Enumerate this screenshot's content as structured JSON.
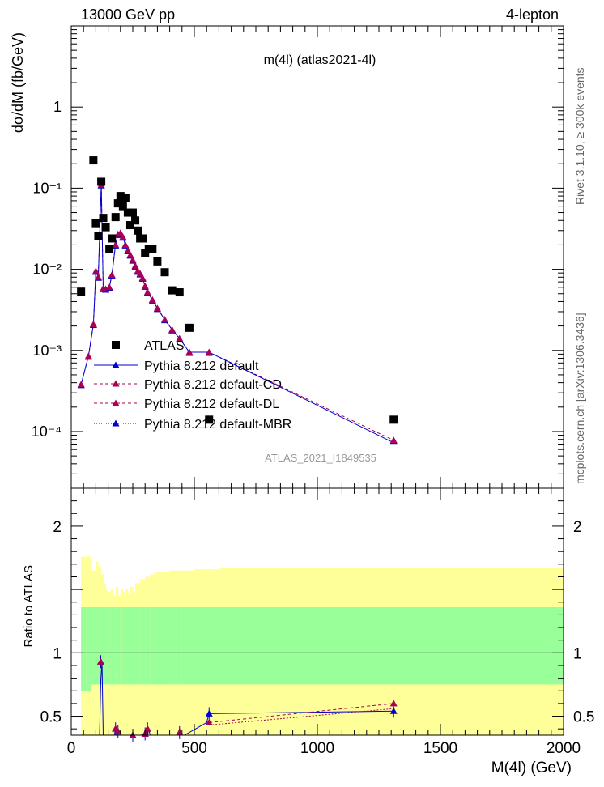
{
  "header": {
    "left": "13000 GeV pp",
    "right": "4-lepton"
  },
  "side_labels": {
    "rivet": "Rivet 3.1.10, ≥ 300k events",
    "mcplots": "mcplots.cern.ch [arXiv:1306.3436]"
  },
  "chart_data": {
    "type": "scatter",
    "title": "m(4l) (atlas2021-4l)",
    "analysis_label": "ATLAS_2021_I1849535",
    "xlabel": "M(4l) (GeV)",
    "ylabel_main": "dσ/dM (fb/GeV)",
    "ylabel_ratio": "Ratio to ATLAS",
    "xlim": [
      0,
      2000
    ],
    "ylim_main": [
      2e-05,
      10
    ],
    "yscale_main": "log",
    "ylim_ratio": [
      0.35,
      2.3
    ],
    "x_ticks": [
      "0",
      "500",
      "1000",
      "1500",
      "2000"
    ],
    "y_ticks_main": [
      "10⁻⁴",
      "10⁻³",
      "10⁻²",
      "10⁻¹",
      "1"
    ],
    "y_ticks_ratio": [
      "0.5",
      "1",
      "2"
    ],
    "legend": {
      "placement": "lower-left",
      "entries": [
        "ATLAS",
        "Pythia 8.212 default",
        "Pythia 8.212 default-CD",
        "Pythia 8.212 default-DL",
        "Pythia 8.212 default-MBR"
      ]
    },
    "colors": {
      "data": "#000000",
      "default": "#0000cc",
      "variants": "#aa0055",
      "band_inner": "#99ff99",
      "band_outer": "#ffff99"
    },
    "data": {
      "name": "ATLAS",
      "x": [
        40,
        90,
        100,
        110,
        122,
        130,
        140,
        155,
        165,
        180,
        190,
        200,
        210,
        220,
        230,
        240,
        250,
        260,
        270,
        280,
        290,
        300,
        315,
        330,
        350,
        380,
        410,
        440,
        480,
        560,
        1310
      ],
      "y": [
        0.0053,
        0.22,
        0.037,
        0.026,
        0.12,
        0.043,
        0.033,
        0.018,
        0.024,
        0.044,
        0.065,
        0.08,
        0.06,
        0.075,
        0.05,
        0.035,
        0.05,
        0.04,
        0.03,
        0.024,
        0.024,
        0.016,
        0.018,
        0.018,
        0.0125,
        0.0092,
        0.0055,
        0.0052,
        0.0019,
        0.00014,
        0.00014
      ]
    },
    "mc_x": [
      40,
      70,
      90,
      100,
      110,
      122,
      130,
      140,
      155,
      165,
      180,
      190,
      200,
      210,
      220,
      230,
      240,
      250,
      260,
      270,
      280,
      290,
      300,
      310,
      330,
      350,
      380,
      410,
      440,
      480,
      560,
      1310
    ],
    "mc_y": [
      0.00038,
      0.00085,
      0.0021,
      0.0095,
      0.008,
      0.11,
      0.0058,
      0.0057,
      0.006,
      0.0085,
      0.02,
      0.027,
      0.028,
      0.025,
      0.02,
      0.017,
      0.015,
      0.013,
      0.011,
      0.0095,
      0.0088,
      0.0078,
      0.0062,
      0.0052,
      0.0042,
      0.0033,
      0.0024,
      0.0018,
      0.0014,
      0.00095,
      0.00095,
      7.8e-05
    ],
    "ratio": {
      "x": [
        120,
        130,
        180,
        190,
        200,
        250,
        270,
        290,
        300,
        310,
        440,
        560,
        1310
      ],
      "default": [
        0.93,
        0.3,
        0.4,
        0.38,
        0.32,
        0.35,
        0.33,
        0.28,
        0.36,
        0.4,
        0.37,
        0.52,
        0.54
      ],
      "variants": [
        0.93,
        0.3,
        0.4,
        0.38,
        0.32,
        0.35,
        0.33,
        0.28,
        0.36,
        0.4,
        0.37,
        0.45,
        0.6
      ]
    },
    "band": {
      "edges": [
        40,
        60,
        80,
        100,
        110,
        120,
        130,
        140,
        150,
        160,
        170,
        180,
        190,
        200,
        210,
        220,
        230,
        240,
        250,
        260,
        270,
        280,
        300,
        320,
        340,
        360,
        400,
        450,
        500,
        600,
        2000
      ],
      "inner_lo": [
        0.7,
        0.7,
        0.75,
        0.75,
        0.75,
        0.75,
        0.75,
        0.75,
        0.75,
        0.75,
        0.75,
        0.75,
        0.75,
        0.75,
        0.75,
        0.75,
        0.75,
        0.75,
        0.75,
        0.75,
        0.75,
        0.75,
        0.75,
        0.75,
        0.75,
        0.75,
        0.75,
        0.75,
        0.75,
        0.75
      ],
      "inner_hi": [
        1.36,
        1.36,
        1.36,
        1.36,
        1.36,
        1.36,
        1.36,
        1.36,
        1.36,
        1.36,
        1.36,
        1.36,
        1.36,
        1.36,
        1.36,
        1.36,
        1.36,
        1.36,
        1.36,
        1.36,
        1.36,
        1.36,
        1.36,
        1.36,
        1.36,
        1.36,
        1.36,
        1.36,
        1.36,
        1.36
      ],
      "outer_lo": [
        0.35,
        0.35,
        0.35,
        0.35,
        0.35,
        0.35,
        0.35,
        0.35,
        0.35,
        0.35,
        0.35,
        0.35,
        0.35,
        0.35,
        0.35,
        0.35,
        0.35,
        0.35,
        0.35,
        0.35,
        0.35,
        0.35,
        0.35,
        0.35,
        0.35,
        0.35,
        0.35,
        0.35,
        0.35,
        0.35
      ],
      "outer_hi": [
        1.76,
        1.76,
        1.65,
        1.72,
        1.68,
        1.62,
        1.55,
        1.5,
        1.48,
        1.5,
        1.45,
        1.52,
        1.45,
        1.5,
        1.48,
        1.5,
        1.46,
        1.52,
        1.48,
        1.55,
        1.55,
        1.58,
        1.6,
        1.62,
        1.64,
        1.64,
        1.65,
        1.65,
        1.66,
        1.67
      ]
    }
  }
}
